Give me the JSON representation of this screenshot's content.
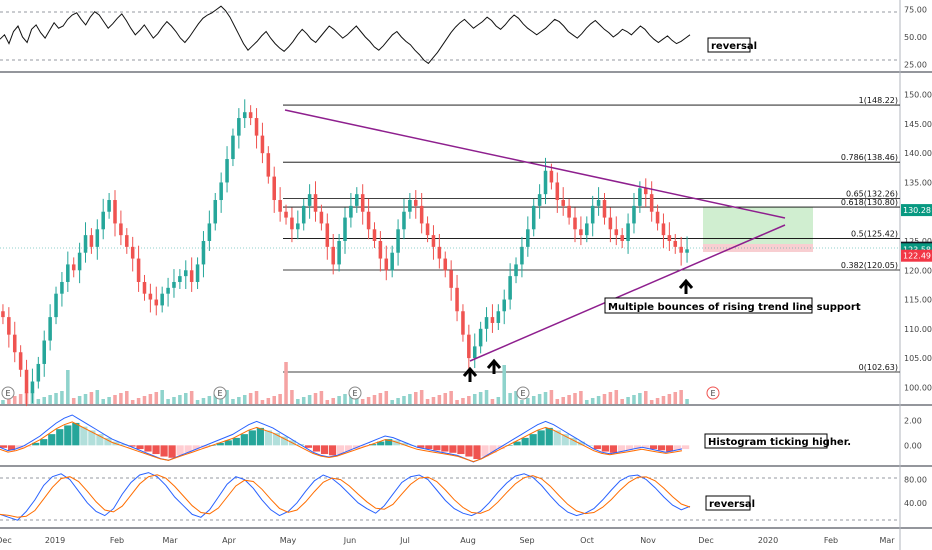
{
  "chart_data": [
    {
      "type": "line",
      "name": "rsi_pane",
      "y_ticks": [
        "75.00",
        "50.00",
        "25.00"
      ],
      "ylim": [
        20,
        80
      ],
      "annotation": "reversal",
      "values": [
        48,
        52,
        44,
        55,
        60,
        50,
        45,
        57,
        61,
        54,
        49,
        56,
        63,
        58,
        60,
        66,
        70,
        72,
        66,
        61,
        68,
        73,
        70,
        64,
        58,
        62,
        67,
        71,
        65,
        58,
        52,
        56,
        61,
        55,
        49,
        53,
        59,
        64,
        60,
        55,
        49,
        45,
        50,
        56,
        62,
        67,
        70,
        72,
        75,
        78,
        74,
        68,
        60,
        52,
        44,
        38,
        42,
        46,
        51,
        55,
        49,
        44,
        40,
        37,
        41,
        46,
        52,
        57,
        53,
        48,
        45,
        50,
        55,
        60,
        57,
        53,
        49,
        52,
        56,
        60,
        55,
        50,
        46,
        41,
        38,
        42,
        47,
        52,
        55,
        50,
        46,
        43,
        38,
        34,
        29,
        26,
        31,
        36,
        42,
        48,
        54,
        59,
        63,
        66,
        62,
        58,
        61,
        64,
        68,
        65,
        60,
        57,
        61,
        66,
        70,
        67,
        62,
        58,
        55,
        52,
        55,
        58,
        62,
        66,
        64,
        60,
        55,
        52,
        49,
        53,
        58,
        62,
        65,
        61,
        57,
        54,
        50,
        53,
        57,
        55,
        52,
        56,
        60,
        57,
        52,
        48,
        45,
        48,
        51,
        47,
        44,
        46,
        49,
        52
      ]
    },
    {
      "type": "candlestick",
      "name": "price_pane",
      "x_ticks": [
        "Dec",
        "2019",
        "Feb",
        "Mar",
        "Apr",
        "May",
        "Jun",
        "Jul",
        "Aug",
        "Sep",
        "Oct",
        "Nov",
        "Dec",
        "2020",
        "Feb",
        "Mar"
      ],
      "y_ticks": [
        "150.00",
        "145.00",
        "140.00",
        "135.00",
        "130.00",
        "125.00",
        "120.00",
        "115.00",
        "110.00",
        "105.00",
        "100.00"
      ],
      "ylim": [
        97.5,
        152.5
      ],
      "ohlc_hint": "daily candles, green up / red down, ~1 year of data",
      "closes": [
        112,
        109,
        106,
        103,
        99,
        101,
        104,
        108,
        112,
        116,
        118,
        121,
        120,
        123,
        126,
        124,
        127,
        130,
        132,
        128,
        126,
        124,
        122,
        118,
        116,
        115,
        114,
        116,
        117,
        118,
        119,
        120,
        118,
        121,
        125,
        128,
        132,
        135,
        139,
        143,
        146,
        147,
        146,
        143,
        140,
        136,
        132,
        130,
        129,
        127,
        128,
        131,
        133,
        130,
        128,
        124,
        121,
        125,
        129,
        131,
        133,
        130,
        127,
        125,
        122,
        120,
        123,
        127,
        130,
        132,
        131,
        128,
        126,
        124,
        122,
        120,
        117,
        113,
        109,
        105,
        107,
        110,
        112,
        111,
        113,
        115,
        119,
        121,
        124,
        127,
        131,
        133,
        137,
        135,
        132,
        131,
        129,
        127,
        126,
        128,
        131,
        132,
        129,
        127,
        126,
        125,
        128,
        131,
        134,
        133,
        130,
        128,
        126,
        125,
        124,
        123,
        123.58
      ],
      "fib_levels": [
        {
          "label": "1(148.22)",
          "price": 148.22
        },
        {
          "label": "0.786(138.46)",
          "price": 138.46
        },
        {
          "label": "0.65(132.26)",
          "price": 132.26
        },
        {
          "label": "0.618(130.80)",
          "price": 130.8
        },
        {
          "label": "0.5(125.42)",
          "price": 125.42
        },
        {
          "label": "0.382(120.05)",
          "price": 120.05
        },
        {
          "label": "0(102.63)",
          "price": 102.63
        }
      ],
      "price_badges": [
        {
          "label": "130.28",
          "price": 130.28,
          "color": "#089981"
        },
        {
          "label": "123.86",
          "price": 123.86,
          "color": "#131722"
        },
        {
          "label": "123.58",
          "price": 123.58,
          "color": "#089981"
        },
        {
          "label": "122.49",
          "price": 122.49,
          "color": "#f23645"
        }
      ],
      "annotation": "Multiple bounces of rising trend line support",
      "earnings_marker": "E",
      "colors": {
        "up": "#26a69a",
        "down": "#ef5350",
        "trendline": "#8e1f8e",
        "target_zone": "#c8ebc8",
        "stop_zone": "#f7c9cc"
      }
    },
    {
      "type": "bar",
      "name": "macd_pane",
      "y_ticks": [
        "2.00",
        "0.00"
      ],
      "ylim": [
        -1.5,
        3.0
      ],
      "annotation": "Histogram ticking higher.",
      "histogram": [
        -0.2,
        -0.4,
        -0.3,
        -0.1,
        0.2,
        0.5,
        0.9,
        1.3,
        1.6,
        1.8,
        1.5,
        1.2,
        0.9,
        0.6,
        0.3,
        0.1,
        -0.1,
        -0.3,
        -0.5,
        -0.7,
        -0.9,
        -1.0,
        -0.8,
        -0.6,
        -0.4,
        -0.2,
        0.0,
        0.2,
        0.4,
        0.6,
        0.9,
        1.2,
        1.4,
        1.2,
        1.0,
        0.7,
        0.4,
        0.1,
        -0.2,
        -0.5,
        -0.7,
        -0.8,
        -0.7,
        -0.5,
        -0.3,
        -0.1,
        0.1,
        0.3,
        0.5,
        0.4,
        0.2,
        0.0,
        -0.2,
        -0.3,
        -0.4,
        -0.5,
        -0.6,
        -0.7,
        -0.9,
        -1.1,
        -0.9,
        -0.6,
        -0.3,
        0.0,
        0.3,
        0.6,
        0.9,
        1.2,
        1.4,
        1.2,
        0.9,
        0.6,
        0.3,
        0.0,
        -0.3,
        -0.5,
        -0.6,
        -0.5,
        -0.4,
        -0.3,
        -0.2,
        -0.3,
        -0.4,
        -0.5,
        -0.4,
        -0.3
      ]
    },
    {
      "type": "line",
      "name": "stoch_pane",
      "y_ticks": [
        "80.00",
        "40.00"
      ],
      "ylim": [
        0,
        100
      ],
      "annotation": "reversal",
      "k": [
        20,
        15,
        10,
        25,
        45,
        70,
        85,
        90,
        80,
        60,
        40,
        25,
        18,
        30,
        55,
        75,
        88,
        92,
        85,
        70,
        50,
        35,
        20,
        15,
        28,
        50,
        72,
        85,
        80,
        65,
        45,
        28,
        18,
        25,
        40,
        60,
        78,
        88,
        82,
        70,
        55,
        40,
        30,
        22,
        35,
        55,
        75,
        85,
        88,
        80,
        62,
        44,
        30,
        22,
        18,
        25,
        40,
        58,
        74,
        86,
        90,
        84,
        70,
        52,
        36,
        24,
        18,
        22,
        30,
        45,
        62,
        78,
        86,
        88,
        80,
        66,
        50,
        36,
        28,
        34
      ]
    }
  ]
}
